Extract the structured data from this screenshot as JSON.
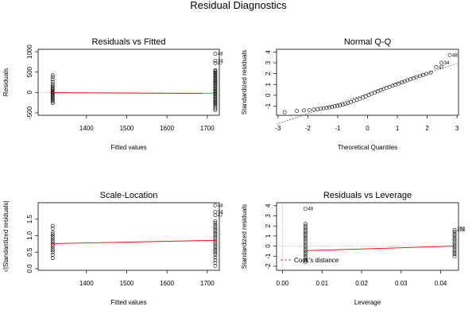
{
  "figure": {
    "title": "Residual Diagnostics"
  },
  "chart_data": [
    {
      "type": "scatter",
      "title": "Residuals vs Fitted",
      "xlabel": "Fitted values",
      "ylabel": "Residuals",
      "xlim": [
        1280,
        1730
      ],
      "ylim": [
        -560,
        1060
      ],
      "xticks": [
        1400,
        1500,
        1600,
        1700
      ],
      "yticks": [
        -500,
        0,
        500,
        1000
      ],
      "ref_line_y": 0,
      "smooth_line": [
        [
          1316,
          -5
        ],
        [
          1720,
          -25
        ]
      ],
      "groups": [
        {
          "x": 1316,
          "y": [
            -260,
            -220,
            -190,
            -160,
            -130,
            -100,
            -70,
            -40,
            -20,
            0,
            20,
            40,
            70,
            100,
            130,
            160,
            200,
            260,
            320,
            380,
            430
          ]
        },
        {
          "x": 1720,
          "y": [
            -440,
            -400,
            -360,
            -320,
            -290,
            -260,
            -230,
            -200,
            -170,
            -140,
            -110,
            -80,
            -50,
            -20,
            10,
            40,
            70,
            100,
            130,
            160,
            190,
            220,
            250,
            280,
            310,
            340,
            370,
            400,
            430,
            460,
            490,
            520,
            550,
            720,
            780,
            950
          ]
        }
      ],
      "labels": [
        {
          "text": "48",
          "x": 1720,
          "y": 950
        },
        {
          "text": "34",
          "x": 1720,
          "y": 780
        },
        {
          "text": "47",
          "x": 1720,
          "y": 720
        }
      ]
    },
    {
      "type": "scatter",
      "title": "Normal Q-Q",
      "xlabel": "Theoretical Quantiles",
      "ylabel": "Standardized residuals",
      "xlim": [
        -3.05,
        3.05
      ],
      "ylim": [
        -1.85,
        4.25
      ],
      "xticks": [
        -3,
        -2,
        -1,
        0,
        1,
        2,
        3
      ],
      "yticks": [
        -1,
        0,
        1,
        2,
        3,
        4
      ],
      "ref_line": {
        "intercept": 0.16,
        "slope": 0.93
      },
      "points": [
        [
          -2.78,
          -1.56
        ],
        [
          -2.37,
          -1.46
        ],
        [
          -2.13,
          -1.4
        ],
        [
          -1.95,
          -1.36
        ],
        [
          -1.8,
          -1.32
        ],
        [
          -1.68,
          -1.28
        ],
        [
          -1.57,
          -1.24
        ],
        [
          -1.47,
          -1.2
        ],
        [
          -1.37,
          -1.16
        ],
        [
          -1.28,
          -1.12
        ],
        [
          -1.19,
          -1.08
        ],
        [
          -1.1,
          -1.03
        ],
        [
          -1.01,
          -0.98
        ],
        [
          -0.92,
          -0.93
        ],
        [
          -0.83,
          -0.87
        ],
        [
          -0.74,
          -0.8
        ],
        [
          -0.65,
          -0.72
        ],
        [
          -0.56,
          -0.63
        ],
        [
          -0.46,
          -0.53
        ],
        [
          -0.36,
          -0.43
        ],
        [
          -0.26,
          -0.33
        ],
        [
          -0.16,
          -0.22
        ],
        [
          -0.06,
          -0.1
        ],
        [
          0.04,
          0.02
        ],
        [
          0.14,
          0.14
        ],
        [
          0.24,
          0.26
        ],
        [
          0.34,
          0.37
        ],
        [
          0.44,
          0.48
        ],
        [
          0.54,
          0.58
        ],
        [
          0.64,
          0.68
        ],
        [
          0.74,
          0.78
        ],
        [
          0.84,
          0.88
        ],
        [
          0.94,
          0.98
        ],
        [
          1.04,
          1.08
        ],
        [
          1.14,
          1.18
        ],
        [
          1.24,
          1.28
        ],
        [
          1.34,
          1.38
        ],
        [
          1.44,
          1.48
        ],
        [
          1.54,
          1.58
        ],
        [
          1.64,
          1.68
        ],
        [
          1.75,
          1.78
        ],
        [
          1.86,
          1.88
        ],
        [
          1.98,
          1.98
        ],
        [
          2.12,
          2.1
        ],
        [
          2.3,
          2.6
        ],
        [
          2.48,
          3.0
        ],
        [
          2.76,
          3.7
        ]
      ],
      "labels": [
        {
          "text": "48",
          "x": 2.76,
          "y": 3.7
        },
        {
          "text": "34",
          "x": 2.48,
          "y": 3.0
        },
        {
          "text": "47",
          "x": 2.3,
          "y": 2.6
        }
      ]
    },
    {
      "type": "scatter",
      "title": "Scale-Location",
      "xlabel": "Fitted values",
      "ylabel": "√|Standardized residuals|",
      "xlim": [
        1280,
        1730
      ],
      "ylim": [
        -0.05,
        2.0
      ],
      "xticks": [
        1400,
        1500,
        1600,
        1700
      ],
      "yticks": [
        0.0,
        0.5,
        1.0,
        1.5
      ],
      "smooth_line": [
        [
          1316,
          0.76
        ],
        [
          1720,
          0.86
        ]
      ],
      "groups": [
        {
          "x": 1316,
          "y": [
            0.32,
            0.42,
            0.5,
            0.56,
            0.62,
            0.68,
            0.74,
            0.8,
            0.86,
            0.92,
            0.98,
            1.04,
            1.1,
            1.22,
            1.3
          ]
        },
        {
          "x": 1720,
          "y": [
            0.08,
            0.18,
            0.26,
            0.34,
            0.42,
            0.48,
            0.54,
            0.6,
            0.66,
            0.72,
            0.78,
            0.84,
            0.9,
            0.96,
            1.02,
            1.08,
            1.14,
            1.2,
            1.26,
            1.32,
            1.38,
            1.44,
            1.62,
            1.72,
            1.92
          ]
        }
      ],
      "labels": [
        {
          "text": "48",
          "x": 1720,
          "y": 1.92
        },
        {
          "text": "34",
          "x": 1720,
          "y": 1.72
        },
        {
          "text": "47",
          "x": 1720,
          "y": 1.62
        }
      ]
    },
    {
      "type": "scatter",
      "title": "Residuals vs Leverage",
      "xlabel": "Leverage",
      "ylabel": "Standardized residuals",
      "xlim": [
        -0.0015,
        0.0445
      ],
      "ylim": [
        -2.4,
        4.3
      ],
      "xticks": [
        0.0,
        0.01,
        0.02,
        0.03,
        0.04
      ],
      "yticks": [
        -2,
        -1,
        0,
        1,
        2,
        3,
        4
      ],
      "ref_line_y": 0,
      "ref_line_x": 0,
      "smooth_line": [
        [
          0.0058,
          -0.45
        ],
        [
          0.0435,
          0.0
        ]
      ],
      "groups": [
        {
          "x": 0.0058,
          "y": [
            -1.6,
            -1.4,
            -1.2,
            -1.0,
            -0.8,
            -0.6,
            -0.4,
            -0.2,
            0.0,
            0.2,
            0.4,
            0.6,
            0.8,
            1.0,
            1.2,
            1.4,
            1.6,
            1.8,
            2.0,
            2.2,
            3.7
          ]
        },
        {
          "x": 0.0435,
          "y": [
            -1.0,
            -0.8,
            -0.6,
            -0.4,
            -0.2,
            0.0,
            0.2,
            0.4,
            0.6,
            0.8,
            1.0,
            1.2,
            1.4,
            1.6
          ]
        }
      ],
      "labels": [
        {
          "text": "48",
          "x": 0.0058,
          "y": 3.7
        },
        {
          "text": "192",
          "x": 0.0435,
          "y": 1.75
        },
        {
          "text": "193",
          "x": 0.0435,
          "y": 1.62
        }
      ],
      "legend": {
        "label": "Cook's distance",
        "placement": "bottom-left",
        "color": "#ff0000"
      }
    }
  ],
  "colors": {
    "smooth": "#ff0000",
    "points": "#000000",
    "refline": "#999999"
  }
}
